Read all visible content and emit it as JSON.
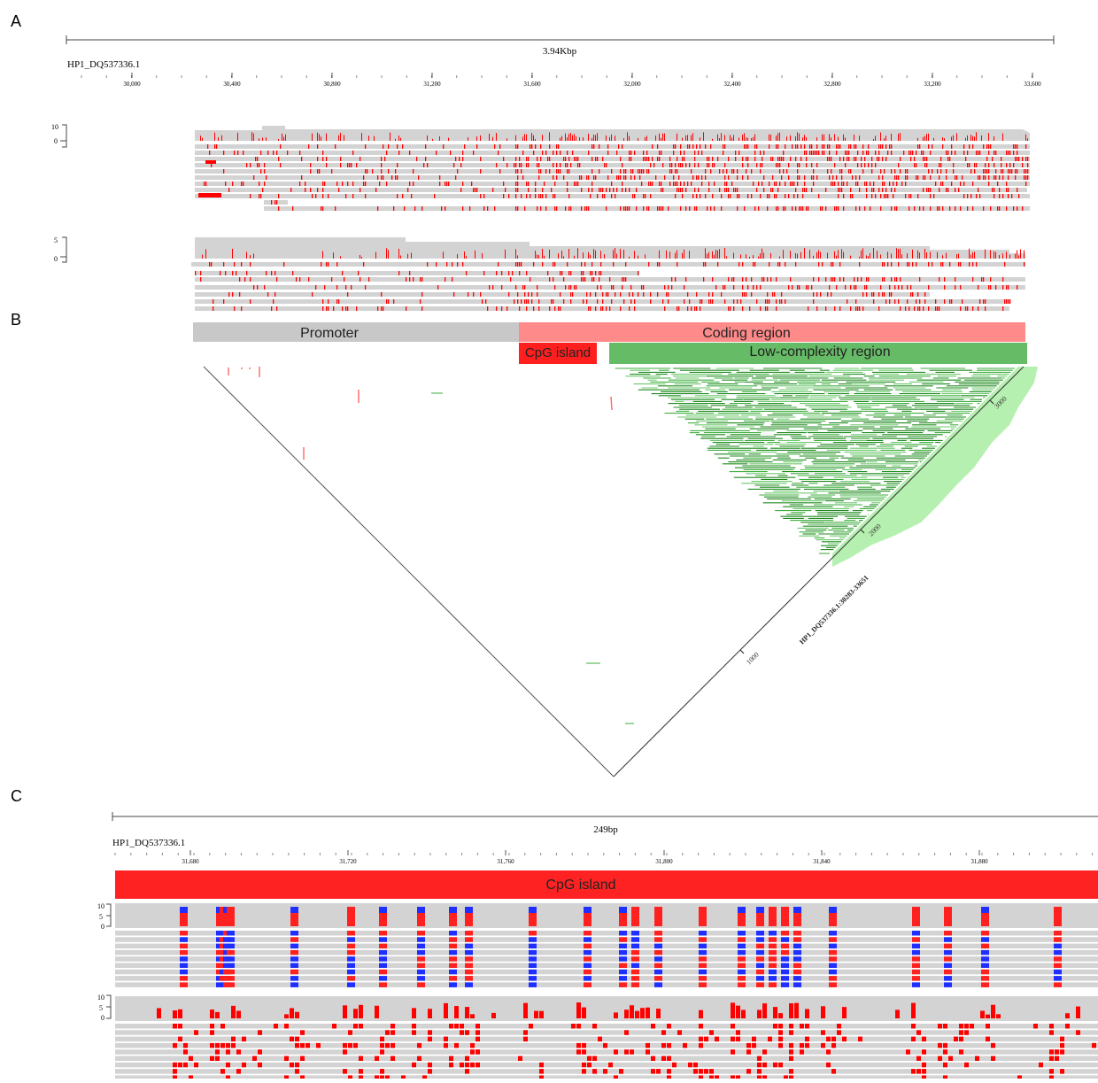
{
  "panels": {
    "a": {
      "letter": "A",
      "span_label": "3.94Kbp",
      "track_name": "HP1_DQ537336.1",
      "ticks": [
        "30,000",
        "30,400",
        "30,800",
        "31,200",
        "31,600",
        "32,000",
        "32,400",
        "32,800",
        "33,200",
        "33,600"
      ],
      "sample1_scale": {
        "top": "10",
        "bottom": "0"
      },
      "sample2_scale": {
        "top": "5",
        "bottom": "0"
      }
    },
    "b": {
      "letter": "B",
      "regions": {
        "promoter": "Promoter",
        "coding": "Coding region",
        "cpg": "CpG island",
        "lowcomplexity": "Low-complexity region"
      },
      "axis_label": "HP1_DQ537336.1:30283-33651",
      "axis_ticks": [
        "1000",
        "2000",
        "3000"
      ]
    },
    "c": {
      "letter": "C",
      "span_label": "249bp",
      "track_name": "HP1_DQ537336.1",
      "ticks": [
        "31,680",
        "31,720",
        "31,760",
        "31,800",
        "31,840",
        "31,880"
      ],
      "cpg_label": "CpG island",
      "sample1_scale": {
        "top": "10",
        "mid": "5",
        "bottom": "0"
      },
      "sample2_scale": {
        "top": "10",
        "mid": "5",
        "bottom": "0"
      }
    }
  },
  "colors": {
    "read_grey": "#d3d3d3",
    "mismatch_red": "#ff0000",
    "methyl_blue": "#1f2fff",
    "promoter_grey": "#c8c8c8",
    "coding_pink": "#ff8a8a",
    "cpg_red": "#ff1f1f",
    "lowcomplex_green": "#66bb66",
    "triangle_green": "#2e9a2e",
    "triangle_lightgreen": "#b6f0b0"
  }
}
